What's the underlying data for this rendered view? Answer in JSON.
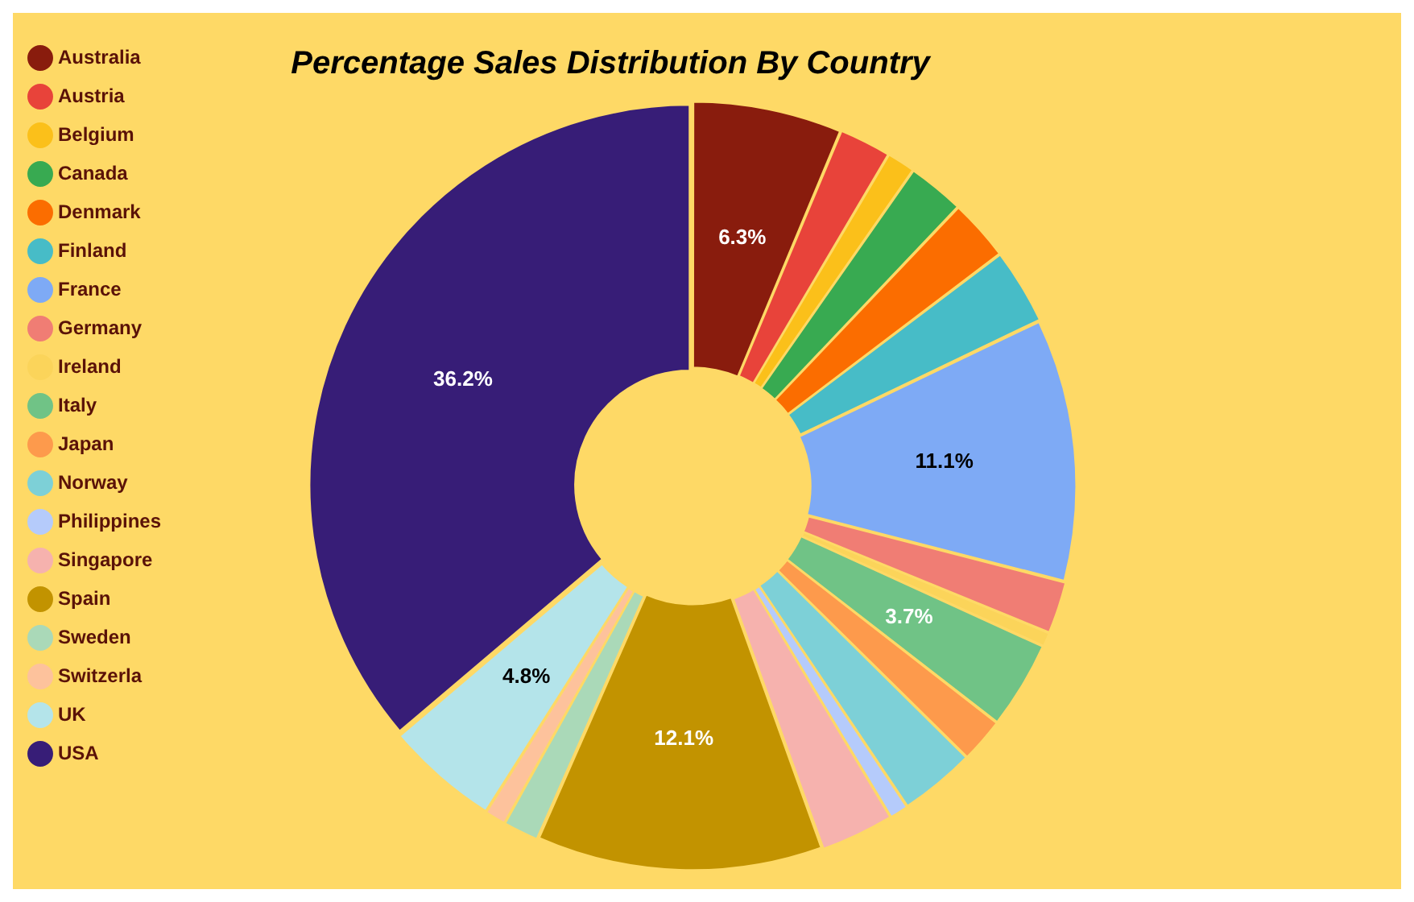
{
  "chart_data": {
    "type": "donut",
    "title": "Percentage Sales Distribution By Country",
    "categories": [
      "Australia",
      "Austria",
      "Belgium",
      "Canada",
      "Denmark",
      "Finland",
      "France",
      "Germany",
      "Ireland",
      "Italy",
      "Japan",
      "Norway",
      "Philippines",
      "Singapore",
      "Spain",
      "Sweden",
      "Switzerla",
      "UK",
      "USA"
    ],
    "values": [
      6.3,
      2.2,
      1.2,
      2.4,
      2.6,
      3.2,
      11.1,
      2.2,
      0.6,
      3.7,
      1.9,
      3.2,
      0.8,
      3.1,
      12.1,
      1.5,
      0.9,
      4.8,
      36.2
    ],
    "value_labels": [
      "6.3%",
      null,
      null,
      null,
      null,
      null,
      "11.1%",
      null,
      null,
      "3.7%",
      null,
      null,
      null,
      null,
      "12.1%",
      null,
      null,
      "4.8%",
      "36.2%"
    ],
    "colors": [
      "#891c0d",
      "#e8433a",
      "#fbc01a",
      "#38aa51",
      "#fb6d00",
      "#47bcc7",
      "#7eaaf5",
      "#f07d74",
      "#fbd45a",
      "#70c386",
      "#fd9a4c",
      "#7dd0d7",
      "#b5cbfb",
      "#f6b2ae",
      "#c29300",
      "#aad9b8",
      "#fdc29c",
      "#b4e4ea",
      "#371d77"
    ],
    "legend": "left"
  }
}
